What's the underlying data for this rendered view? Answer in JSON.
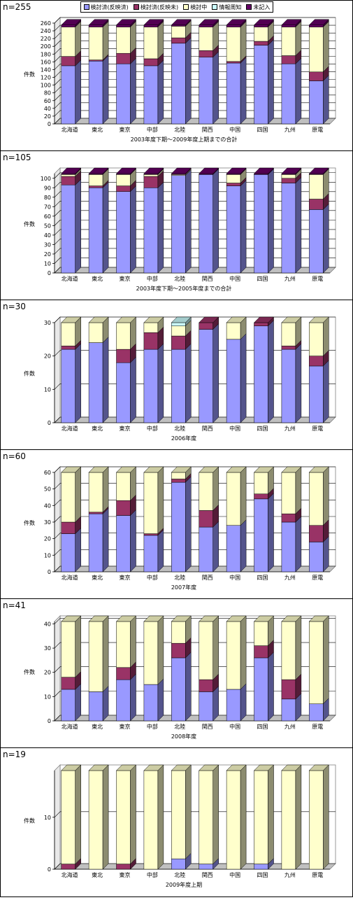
{
  "legend": {
    "items": [
      {
        "label": "検討済(反映済)",
        "color": "#9999ff"
      },
      {
        "label": "検討済(反映未)",
        "color": "#993366"
      },
      {
        "label": "検討中",
        "color": "#ffffcc"
      },
      {
        "label": "情報周知",
        "color": "#ccffff"
      },
      {
        "label": "未記入",
        "color": "#660066"
      }
    ]
  },
  "chart_data": [
    {
      "type": "bar",
      "stacked": true,
      "n_label": "n=255",
      "xlabel": "2003年度下期～2009年度上期までの合計",
      "ylabel": "件数",
      "ylim": [
        0,
        260
      ],
      "yticks": [
        0,
        20,
        40,
        60,
        80,
        100,
        120,
        140,
        160,
        180,
        200,
        220,
        240,
        260
      ],
      "categories": [
        "北海道",
        "東北",
        "東京",
        "中部",
        "北陸",
        "関西",
        "中国",
        "四国",
        "九州",
        "原電"
      ],
      "series": [
        {
          "name": "検討済(反映済)",
          "values": [
            150,
            162,
            155,
            150,
            208,
            172,
            157,
            203,
            155,
            111
          ]
        },
        {
          "name": "検討済(反映未)",
          "values": [
            24,
            3,
            27,
            18,
            14,
            17,
            4,
            10,
            21,
            23
          ]
        },
        {
          "name": "検討中",
          "values": [
            76,
            85,
            68,
            82,
            30,
            61,
            89,
            37,
            74,
            116
          ]
        },
        {
          "name": "情報周知",
          "values": [
            0,
            0,
            0,
            0,
            0,
            0,
            0,
            0,
            0,
            0
          ]
        },
        {
          "name": "未記入",
          "values": [
            5,
            5,
            5,
            5,
            3,
            5,
            5,
            5,
            5,
            5
          ]
        }
      ]
    },
    {
      "type": "bar",
      "stacked": true,
      "n_label": "n=105",
      "xlabel": "2003年度下期～2005年度までの合計",
      "ylabel": "件数",
      "ylim": [
        0,
        105
      ],
      "yticks": [
        0,
        10,
        20,
        30,
        40,
        50,
        60,
        70,
        80,
        90,
        100
      ],
      "categories": [
        "北海道",
        "東北",
        "東京",
        "中部",
        "北陸",
        "関西",
        "中国",
        "四国",
        "九州",
        "原電"
      ],
      "series": [
        {
          "name": "検討済(反映済)",
          "values": [
            93,
            90,
            86,
            90,
            103,
            104,
            92,
            104,
            95,
            67
          ]
        },
        {
          "name": "検討済(反映未)",
          "values": [
            9,
            2,
            6,
            12,
            0,
            0,
            3,
            0,
            5,
            11
          ]
        },
        {
          "name": "検討中",
          "values": [
            2,
            12,
            12,
            2,
            1,
            0,
            9,
            0,
            4,
            26
          ]
        },
        {
          "name": "情報周知",
          "values": [
            0,
            0,
            0,
            0,
            0,
            0,
            0,
            0,
            0,
            0
          ]
        },
        {
          "name": "未記入",
          "values": [
            1,
            1,
            1,
            1,
            1,
            1,
            1,
            1,
            1,
            1
          ]
        }
      ]
    },
    {
      "type": "bar",
      "stacked": true,
      "n_label": "n=30",
      "xlabel": "2006年度",
      "ylabel": "件数",
      "ylim": [
        0,
        30
      ],
      "yticks": [
        0,
        10,
        20,
        30
      ],
      "categories": [
        "北海道",
        "東北",
        "東京",
        "中部",
        "北陸",
        "関西",
        "中国",
        "四国",
        "九州",
        "原電"
      ],
      "series": [
        {
          "name": "検討済(反映済)",
          "values": [
            22,
            24,
            18,
            22,
            22,
            28,
            25,
            29,
            22,
            17
          ]
        },
        {
          "name": "検討済(反映未)",
          "values": [
            1,
            0,
            4,
            5,
            4,
            2,
            0,
            1,
            1,
            3
          ]
        },
        {
          "name": "検討中",
          "values": [
            7,
            6,
            8,
            3,
            3,
            0,
            5,
            0,
            7,
            10
          ]
        },
        {
          "name": "情報周知",
          "values": [
            0,
            0,
            0,
            0,
            1,
            0,
            0,
            0,
            0,
            0
          ]
        },
        {
          "name": "未記入",
          "values": [
            0,
            0,
            0,
            0,
            0,
            0,
            0,
            0,
            0,
            0
          ]
        }
      ]
    },
    {
      "type": "bar",
      "stacked": true,
      "n_label": "n=60",
      "xlabel": "2007年度",
      "ylabel": "件数",
      "ylim": [
        0,
        60
      ],
      "yticks": [
        0,
        10,
        20,
        30,
        40,
        50,
        60
      ],
      "categories": [
        "北海道",
        "東北",
        "東京",
        "中部",
        "北陸",
        "関西",
        "中国",
        "四国",
        "九州",
        "原電"
      ],
      "series": [
        {
          "name": "検討済(反映済)",
          "values": [
            23,
            35,
            34,
            22,
            54,
            27,
            28,
            44,
            30,
            18
          ]
        },
        {
          "name": "検討済(反映未)",
          "values": [
            7,
            1,
            9,
            1,
            2,
            10,
            0,
            3,
            5,
            10
          ]
        },
        {
          "name": "検討中",
          "values": [
            30,
            24,
            17,
            37,
            4,
            23,
            32,
            13,
            25,
            32
          ]
        },
        {
          "name": "情報周知",
          "values": [
            0,
            0,
            0,
            0,
            0,
            0,
            0,
            0,
            0,
            0
          ]
        },
        {
          "name": "未記入",
          "values": [
            0,
            0,
            0,
            0,
            0,
            0,
            0,
            0,
            0,
            0
          ]
        }
      ]
    },
    {
      "type": "bar",
      "stacked": true,
      "n_label": "n=41",
      "xlabel": "2008年度",
      "ylabel": "件数",
      "ylim": [
        0,
        41
      ],
      "yticks": [
        0,
        10,
        20,
        30,
        40
      ],
      "categories": [
        "北海道",
        "東北",
        "東京",
        "中部",
        "北陸",
        "関西",
        "中国",
        "四国",
        "九州",
        "原電"
      ],
      "series": [
        {
          "name": "検討済(反映済)",
          "values": [
            13,
            12,
            17,
            15,
            26,
            12,
            13,
            26,
            9,
            7
          ]
        },
        {
          "name": "検討済(反映未)",
          "values": [
            5,
            0,
            5,
            0,
            6,
            5,
            0,
            5,
            8,
            0
          ]
        },
        {
          "name": "検討中",
          "values": [
            23,
            29,
            19,
            26,
            9,
            24,
            28,
            10,
            24,
            34
          ]
        },
        {
          "name": "情報周知",
          "values": [
            0,
            0,
            0,
            0,
            0,
            0,
            0,
            0,
            0,
            0
          ]
        },
        {
          "name": "未記入",
          "values": [
            0,
            0,
            0,
            0,
            0,
            0,
            0,
            0,
            0,
            0
          ]
        }
      ]
    },
    {
      "type": "bar",
      "stacked": true,
      "n_label": "n=19",
      "xlabel": "2009年度上期",
      "ylabel": "件数",
      "ylim": [
        0,
        19
      ],
      "yticks": [
        0,
        10
      ],
      "categories": [
        "北海道",
        "東北",
        "東京",
        "中部",
        "北陸",
        "関西",
        "中国",
        "四国",
        "九州",
        "原電"
      ],
      "series": [
        {
          "name": "検討済(反映済)",
          "values": [
            0,
            0,
            0,
            0,
            2,
            1,
            0,
            1,
            0,
            0
          ]
        },
        {
          "name": "検討済(反映未)",
          "values": [
            1,
            0,
            1,
            0,
            0,
            0,
            0,
            0,
            0,
            0
          ]
        },
        {
          "name": "検討中",
          "values": [
            18,
            19,
            18,
            19,
            17,
            18,
            19,
            18,
            19,
            19
          ]
        },
        {
          "name": "情報周知",
          "values": [
            0,
            0,
            0,
            0,
            0,
            0,
            0,
            0,
            0,
            0
          ]
        },
        {
          "name": "未記入",
          "values": [
            0,
            0,
            0,
            0,
            0,
            0,
            0,
            0,
            0,
            0
          ]
        }
      ]
    }
  ]
}
